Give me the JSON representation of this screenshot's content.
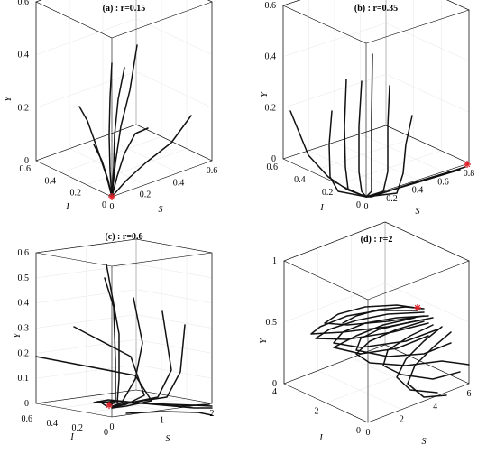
{
  "chart_data": [
    {
      "type": "line",
      "title": "(a) :  r=0.15",
      "xlabel": "S",
      "ylabel": "I",
      "zlabel": "Y",
      "x_ticks": [
        "0",
        "0.2",
        "0.4",
        "0.6"
      ],
      "y_ticks": [
        "0",
        "0.2",
        "0.4",
        "0.6"
      ],
      "z_ticks": [
        "0",
        "0.2",
        "0.4",
        "0.6"
      ],
      "xlim": [
        0,
        0.6
      ],
      "ylim": [
        0,
        0.6
      ],
      "zlim": [
        0,
        0.6
      ],
      "equilibrium": {
        "S": 0,
        "I": 0,
        "Y": 0
      },
      "marker_color": "#e0242b",
      "note": "trajectories from several initial points converge to the origin"
    },
    {
      "type": "line",
      "title": "(b) :  r=0.35",
      "xlabel": "S",
      "ylabel": "I",
      "zlabel": "Y",
      "x_ticks": [
        "0",
        "0.2",
        "0.4",
        "0.6",
        "0.8"
      ],
      "y_ticks": [
        "0",
        "0.2",
        "0.4",
        "0.6"
      ],
      "z_ticks": [
        "0",
        "0.2",
        "0.4",
        "0.6"
      ],
      "xlim": [
        0,
        0.8
      ],
      "ylim": [
        0,
        0.6
      ],
      "zlim": [
        0,
        0.6
      ],
      "equilibrium": {
        "S": 0.8,
        "I": 0,
        "Y": 0
      },
      "marker_color": "#e0242b"
    },
    {
      "type": "line",
      "title": "(c) :  r=0.6",
      "xlabel": "S",
      "ylabel": "I",
      "zlabel": "Y",
      "x_ticks": [
        "0",
        "1",
        "2"
      ],
      "y_ticks": [
        "0",
        "0.2",
        "0.4",
        "0.6"
      ],
      "z_ticks": [
        "0",
        "0.1",
        "0.2",
        "0.3",
        "0.4",
        "0.5",
        "0.6"
      ],
      "xlim": [
        0,
        2
      ],
      "ylim": [
        0,
        0.6
      ],
      "zlim": [
        0,
        0.6
      ],
      "equilibrium": {
        "S": 0.15,
        "I": 0.1,
        "Y": 0
      },
      "marker_color": "#e0242b"
    },
    {
      "type": "line",
      "title": "(d) :  r=2",
      "xlabel": "S",
      "ylabel": "I",
      "zlabel": "Y",
      "x_ticks": [
        "0",
        "2",
        "4",
        "6"
      ],
      "y_ticks": [
        "0",
        "2",
        "4"
      ],
      "z_ticks": [
        "0",
        "0.5",
        "1"
      ],
      "xlim": [
        0,
        6
      ],
      "ylim": [
        0,
        4
      ],
      "zlim": [
        0,
        1.2
      ],
      "equilibrium": {
        "S": 4.5,
        "I": 3.5,
        "Y": 1.0
      },
      "marker_color": "#e0242b"
    }
  ]
}
